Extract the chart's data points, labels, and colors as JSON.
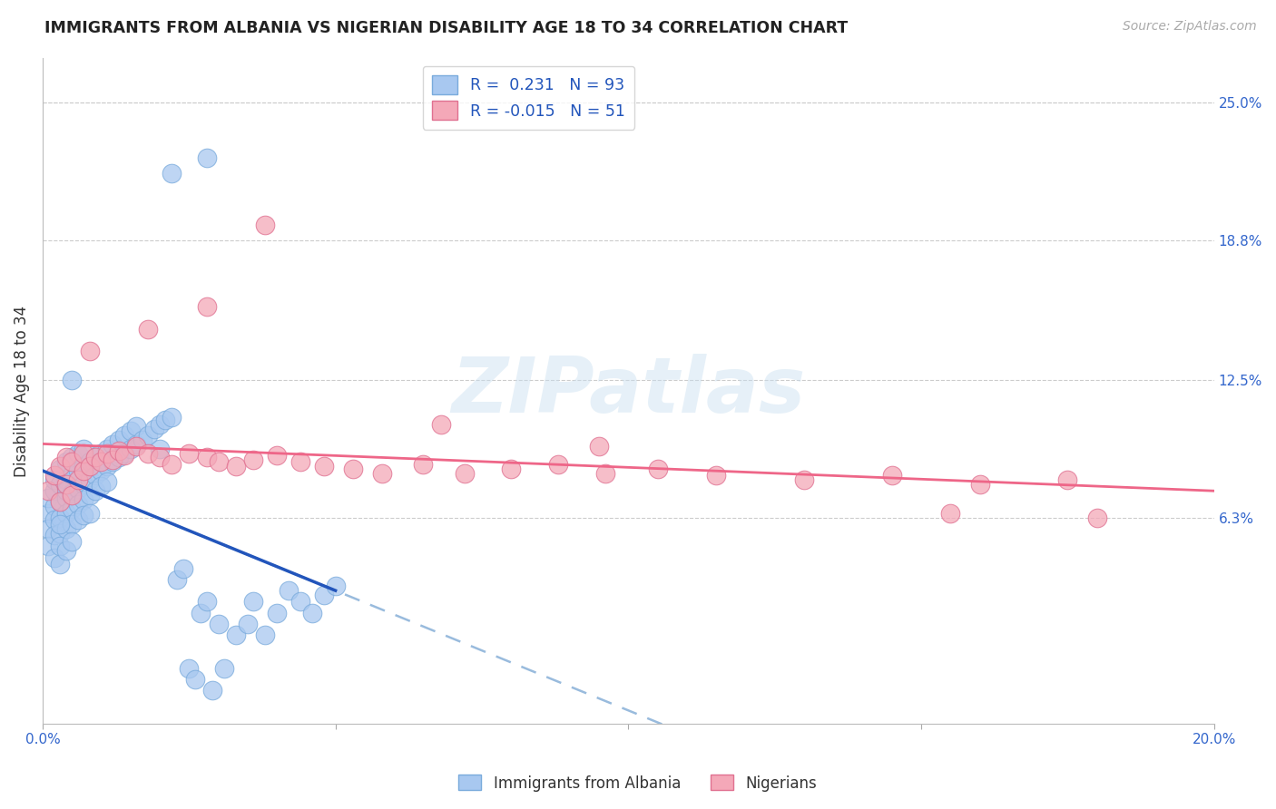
{
  "title": "IMMIGRANTS FROM ALBANIA VS NIGERIAN DISABILITY AGE 18 TO 34 CORRELATION CHART",
  "source": "Source: ZipAtlas.com",
  "ylabel": "Disability Age 18 to 34",
  "xlim": [
    0.0,
    0.2
  ],
  "ylim": [
    -0.03,
    0.27
  ],
  "ytick_values": [
    0.063,
    0.125,
    0.188,
    0.25
  ],
  "ytick_labels": [
    "6.3%",
    "12.5%",
    "18.8%",
    "25.0%"
  ],
  "grid_color": "#cccccc",
  "background_color": "#ffffff",
  "albania_color": "#a8c8f0",
  "albania_edge_color": "#7aabdc",
  "nigerian_color": "#f4a8b8",
  "nigerian_edge_color": "#e07090",
  "albania_line_color": "#2255bb",
  "albania_dash_color": "#99bbdd",
  "nigerian_line_color": "#ee6688",
  "R_albania": 0.231,
  "N_albania": 93,
  "R_nigerian": -0.015,
  "N_nigerian": 51,
  "legend_label_1": "Immigrants from Albania",
  "legend_label_2": "Nigerians",
  "alb_x": [
    0.001,
    0.001,
    0.001,
    0.001,
    0.002,
    0.002,
    0.002,
    0.002,
    0.002,
    0.002,
    0.003,
    0.003,
    0.003,
    0.003,
    0.003,
    0.003,
    0.003,
    0.004,
    0.004,
    0.004,
    0.004,
    0.004,
    0.004,
    0.004,
    0.005,
    0.005,
    0.005,
    0.005,
    0.005,
    0.005,
    0.006,
    0.006,
    0.006,
    0.006,
    0.006,
    0.007,
    0.007,
    0.007,
    0.007,
    0.007,
    0.008,
    0.008,
    0.008,
    0.008,
    0.009,
    0.009,
    0.009,
    0.01,
    0.01,
    0.01,
    0.011,
    0.011,
    0.011,
    0.012,
    0.012,
    0.013,
    0.013,
    0.014,
    0.014,
    0.015,
    0.015,
    0.016,
    0.016,
    0.017,
    0.018,
    0.019,
    0.02,
    0.02,
    0.021,
    0.022,
    0.023,
    0.024,
    0.025,
    0.026,
    0.027,
    0.028,
    0.029,
    0.03,
    0.031,
    0.033,
    0.035,
    0.036,
    0.038,
    0.04,
    0.042,
    0.044,
    0.046,
    0.048,
    0.05,
    0.022,
    0.028,
    0.005,
    0.003
  ],
  "alb_y": [
    0.065,
    0.072,
    0.058,
    0.05,
    0.068,
    0.075,
    0.062,
    0.055,
    0.08,
    0.045,
    0.07,
    0.078,
    0.063,
    0.056,
    0.085,
    0.05,
    0.042,
    0.072,
    0.08,
    0.065,
    0.058,
    0.088,
    0.075,
    0.048,
    0.074,
    0.082,
    0.067,
    0.06,
    0.09,
    0.052,
    0.076,
    0.084,
    0.069,
    0.062,
    0.092,
    0.078,
    0.086,
    0.071,
    0.064,
    0.094,
    0.08,
    0.088,
    0.073,
    0.065,
    0.082,
    0.09,
    0.075,
    0.084,
    0.092,
    0.077,
    0.086,
    0.094,
    0.079,
    0.088,
    0.096,
    0.09,
    0.098,
    0.092,
    0.1,
    0.094,
    0.102,
    0.096,
    0.104,
    0.098,
    0.1,
    0.103,
    0.105,
    0.094,
    0.107,
    0.108,
    0.035,
    0.04,
    -0.005,
    -0.01,
    0.02,
    0.025,
    -0.015,
    0.015,
    -0.005,
    0.01,
    0.015,
    0.025,
    0.01,
    0.02,
    0.03,
    0.025,
    0.02,
    0.028,
    0.032,
    0.218,
    0.225,
    0.125,
    0.06
  ],
  "nig_x": [
    0.001,
    0.002,
    0.003,
    0.003,
    0.004,
    0.004,
    0.005,
    0.005,
    0.006,
    0.007,
    0.007,
    0.008,
    0.009,
    0.01,
    0.011,
    0.012,
    0.013,
    0.014,
    0.016,
    0.018,
    0.02,
    0.022,
    0.025,
    0.028,
    0.03,
    0.033,
    0.036,
    0.04,
    0.044,
    0.048,
    0.053,
    0.058,
    0.065,
    0.072,
    0.08,
    0.088,
    0.096,
    0.105,
    0.115,
    0.13,
    0.145,
    0.16,
    0.175,
    0.038,
    0.028,
    0.018,
    0.008,
    0.068,
    0.095,
    0.155,
    0.18
  ],
  "nig_y": [
    0.075,
    0.082,
    0.07,
    0.086,
    0.078,
    0.09,
    0.073,
    0.088,
    0.08,
    0.084,
    0.092,
    0.086,
    0.09,
    0.088,
    0.092,
    0.089,
    0.093,
    0.091,
    0.095,
    0.092,
    0.09,
    0.087,
    0.092,
    0.09,
    0.088,
    0.086,
    0.089,
    0.091,
    0.088,
    0.086,
    0.085,
    0.083,
    0.087,
    0.083,
    0.085,
    0.087,
    0.083,
    0.085,
    0.082,
    0.08,
    0.082,
    0.078,
    0.08,
    0.195,
    0.158,
    0.148,
    0.138,
    0.105,
    0.095,
    0.065,
    0.063
  ]
}
